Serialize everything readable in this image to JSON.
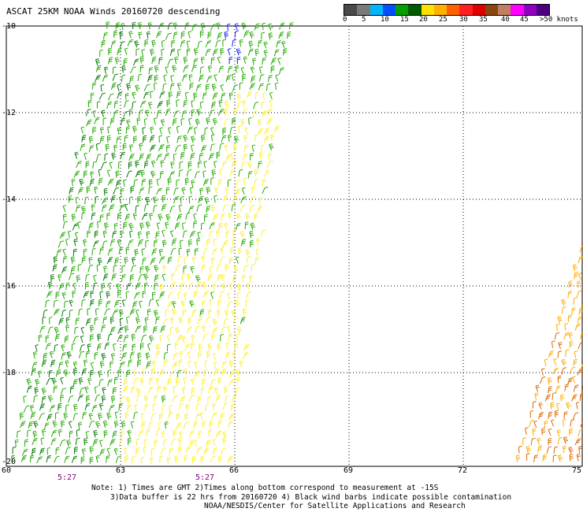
{
  "title": "ASCAT 25KM NOAA Winds 20160720 descending",
  "scale": {
    "colors": [
      "#4a4a4a",
      "#7a7a7a",
      "#00b4ff",
      "#0050ff",
      "#00a000",
      "#005a00",
      "#ffe000",
      "#ffb000",
      "#ff6000",
      "#ff2020",
      "#e00000",
      "#8b4513",
      "#c08060",
      "#ff00ff",
      "#9000c0",
      "#4b0082"
    ],
    "labels": [
      "0",
      "5",
      "10",
      "15",
      "20",
      "25",
      "30",
      "35",
      "40",
      "45",
      ">50 knots"
    ]
  },
  "axes": {
    "lat_labels": [
      "-10",
      "-12",
      "-14",
      "-16",
      "-18",
      "-20"
    ],
    "lon_labels": [
      "60",
      "63",
      "66",
      "69",
      "72",
      "75"
    ],
    "time_labels": [
      "5:27",
      "5:27"
    ]
  },
  "swath_colors": {
    "green": "#22aa00",
    "dark_green": "#007a00",
    "yellow": "#ffee33",
    "orange": "#ffaa00",
    "dark_orange": "#dd6600",
    "blue": "#2020ff"
  },
  "notes": {
    "line1": "Note: 1) Times are GMT 2)Times along bottom correspond to measurement at -15S",
    "line2": "3)Data buffer is 22 hrs from 20160720 4) Black wind barbs indicate possible contamination",
    "line3": "NOAA/NESDIS/Center for Satellite Applications and Research"
  }
}
